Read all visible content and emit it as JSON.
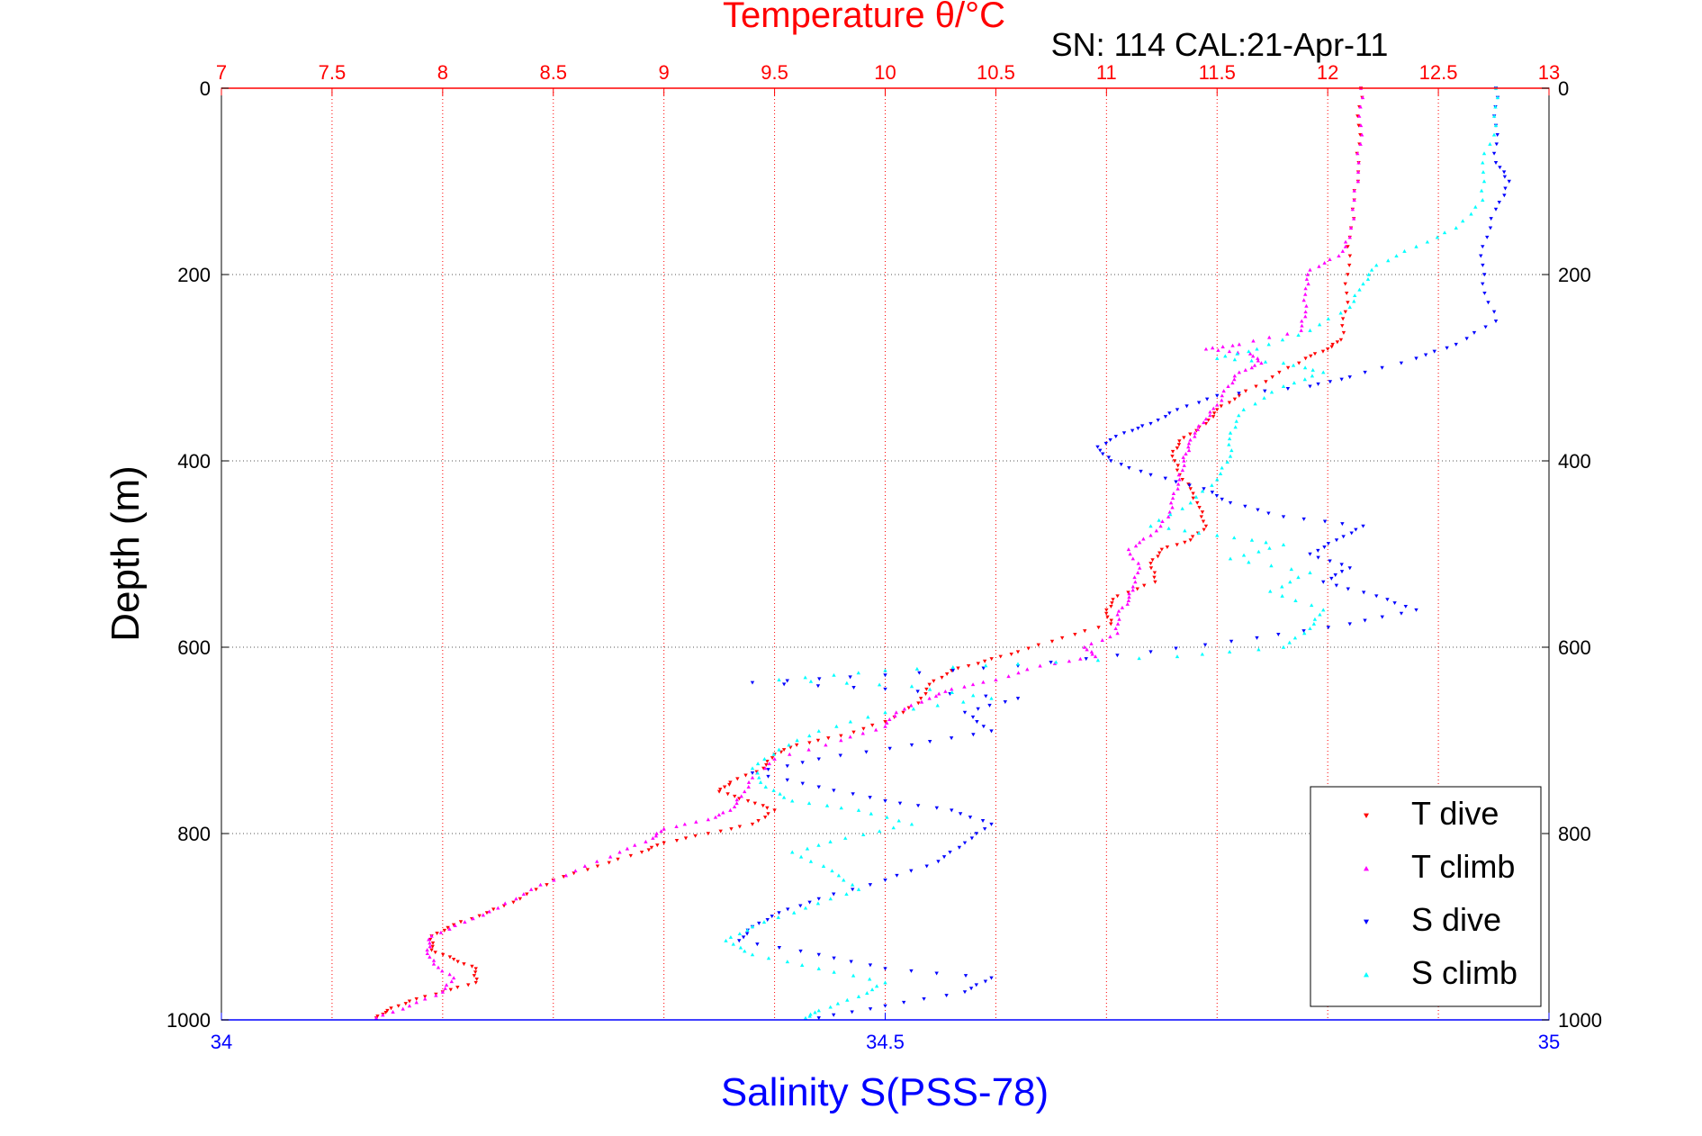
{
  "chart_data": {
    "type": "scatter",
    "title": "Temperature θ/°C",
    "subtitle": "SN: 114  CAL:21-Apr-11",
    "xlabel_top": "Temperature θ/°C",
    "xlabel_bottom": "Salinity S(PSS-78)",
    "ylabel": "Depth (m)",
    "ylim": [
      0,
      1000
    ],
    "y_reversed": true,
    "y_ticks": [
      0,
      200,
      400,
      600,
      800,
      1000
    ],
    "xlim_top": [
      7,
      13
    ],
    "x_ticks_top": [
      7,
      7.5,
      8,
      8.5,
      9,
      9.5,
      10,
      10.5,
      11,
      11.5,
      12,
      12.5,
      13
    ],
    "xlim_bottom": [
      34,
      35
    ],
    "x_ticks_bottom": [
      34,
      34.5,
      35
    ],
    "grid": true,
    "legend_placement": "bottom-right",
    "colors": {
      "temperature_axis": "#ff0000",
      "salinity_axis": "#0000ff",
      "t_dive": "#ff0000",
      "t_climb": "#ff00ff",
      "s_dive": "#0000ff",
      "s_climb": "#00ffff"
    },
    "series": [
      {
        "name": "T dive",
        "axis": "temperature",
        "marker": "triangle-down",
        "color": "#ff0000",
        "points": [
          [
            12.15,
            0
          ],
          [
            12.14,
            40
          ],
          [
            12.14,
            80
          ],
          [
            12.12,
            120
          ],
          [
            12.1,
            160
          ],
          [
            12.09,
            200
          ],
          [
            12.08,
            240
          ],
          [
            12.06,
            270
          ],
          [
            12.0,
            280
          ],
          [
            11.9,
            290
          ],
          [
            11.75,
            310
          ],
          [
            11.6,
            330
          ],
          [
            11.5,
            345
          ],
          [
            11.45,
            360
          ],
          [
            11.35,
            375
          ],
          [
            11.3,
            390
          ],
          [
            11.32,
            410
          ],
          [
            11.38,
            430
          ],
          [
            11.42,
            450
          ],
          [
            11.45,
            470
          ],
          [
            11.38,
            485
          ],
          [
            11.25,
            495
          ],
          [
            11.2,
            510
          ],
          [
            11.22,
            530
          ],
          [
            11.05,
            545
          ],
          [
            11.0,
            560
          ],
          [
            11.02,
            575
          ],
          [
            10.8,
            590
          ],
          [
            10.6,
            605
          ],
          [
            10.45,
            615
          ],
          [
            10.3,
            625
          ],
          [
            10.2,
            640
          ],
          [
            10.15,
            660
          ],
          [
            10.0,
            680
          ],
          [
            9.8,
            695
          ],
          [
            9.6,
            705
          ],
          [
            9.5,
            715
          ],
          [
            9.45,
            730
          ],
          [
            9.3,
            745
          ],
          [
            9.25,
            755
          ],
          [
            9.38,
            765
          ],
          [
            9.5,
            775
          ],
          [
            9.4,
            790
          ],
          [
            9.2,
            800
          ],
          [
            9.0,
            810
          ],
          [
            8.9,
            820
          ],
          [
            8.7,
            835
          ],
          [
            8.5,
            850
          ],
          [
            8.35,
            870
          ],
          [
            8.2,
            885
          ],
          [
            8.05,
            898
          ],
          [
            7.95,
            910
          ],
          [
            7.95,
            925
          ],
          [
            8.05,
            935
          ],
          [
            8.15,
            945
          ],
          [
            8.15,
            960
          ],
          [
            8.0,
            970
          ],
          [
            7.85,
            980
          ],
          [
            7.75,
            990
          ],
          [
            7.7,
            998
          ]
        ]
      },
      {
        "name": "T climb",
        "axis": "temperature",
        "marker": "triangle-up",
        "color": "#ff00ff",
        "points": [
          [
            12.15,
            0
          ],
          [
            12.15,
            40
          ],
          [
            12.14,
            80
          ],
          [
            12.12,
            120
          ],
          [
            12.1,
            160
          ],
          [
            12.05,
            180
          ],
          [
            11.92,
            195
          ],
          [
            11.9,
            215
          ],
          [
            11.9,
            240
          ],
          [
            11.88,
            260
          ],
          [
            11.6,
            275
          ],
          [
            11.45,
            280
          ],
          [
            11.65,
            285
          ],
          [
            11.7,
            295
          ],
          [
            11.6,
            305
          ],
          [
            11.55,
            320
          ],
          [
            11.5,
            340
          ],
          [
            11.45,
            355
          ],
          [
            11.4,
            370
          ],
          [
            11.37,
            385
          ],
          [
            11.35,
            400
          ],
          [
            11.33,
            420
          ],
          [
            11.3,
            440
          ],
          [
            11.28,
            460
          ],
          [
            11.2,
            480
          ],
          [
            11.1,
            495
          ],
          [
            11.15,
            515
          ],
          [
            11.12,
            535
          ],
          [
            11.1,
            550
          ],
          [
            11.05,
            565
          ],
          [
            11.05,
            585
          ],
          [
            10.9,
            600
          ],
          [
            10.95,
            610
          ],
          [
            10.7,
            620
          ],
          [
            10.5,
            635
          ],
          [
            10.3,
            645
          ],
          [
            10.2,
            655
          ],
          [
            10.05,
            670
          ],
          [
            10.0,
            685
          ],
          [
            9.8,
            700
          ],
          [
            9.5,
            720
          ],
          [
            9.4,
            740
          ],
          [
            9.35,
            760
          ],
          [
            9.3,
            775
          ],
          [
            9.2,
            785
          ],
          [
            9.0,
            795
          ],
          [
            8.95,
            805
          ],
          [
            8.8,
            820
          ],
          [
            8.6,
            840
          ],
          [
            8.4,
            860
          ],
          [
            8.25,
            880
          ],
          [
            8.1,
            895
          ],
          [
            7.95,
            910
          ],
          [
            7.93,
            925
          ],
          [
            7.96,
            940
          ],
          [
            8.05,
            955
          ],
          [
            8.0,
            970
          ],
          [
            7.85,
            985
          ],
          [
            7.7,
            998
          ]
        ]
      },
      {
        "name": "S dive",
        "axis": "salinity",
        "marker": "triangle-down",
        "color": "#0000ff",
        "points": [
          [
            34.96,
            0
          ],
          [
            34.96,
            40
          ],
          [
            34.96,
            80
          ],
          [
            34.97,
            100
          ],
          [
            34.96,
            130
          ],
          [
            34.95,
            170
          ],
          [
            34.95,
            210
          ],
          [
            34.96,
            250
          ],
          [
            34.93,
            275
          ],
          [
            34.9,
            290
          ],
          [
            34.85,
            310
          ],
          [
            34.82,
            320
          ],
          [
            34.75,
            330
          ],
          [
            34.72,
            345
          ],
          [
            34.7,
            360
          ],
          [
            34.68,
            370
          ],
          [
            34.66,
            385
          ],
          [
            34.67,
            400
          ],
          [
            34.7,
            415
          ],
          [
            34.74,
            430
          ],
          [
            34.76,
            445
          ],
          [
            34.8,
            460
          ],
          [
            34.86,
            470
          ],
          [
            34.84,
            485
          ],
          [
            34.82,
            500
          ],
          [
            34.85,
            515
          ],
          [
            34.83,
            530
          ],
          [
            34.87,
            545
          ],
          [
            34.9,
            560
          ],
          [
            34.85,
            575
          ],
          [
            34.78,
            590
          ],
          [
            34.7,
            605
          ],
          [
            34.6,
            620
          ],
          [
            34.5,
            630
          ],
          [
            34.4,
            638
          ],
          [
            34.5,
            645
          ],
          [
            34.6,
            655
          ],
          [
            34.56,
            670
          ],
          [
            34.58,
            690
          ],
          [
            34.52,
            705
          ],
          [
            34.45,
            720
          ],
          [
            34.4,
            735
          ],
          [
            34.45,
            750
          ],
          [
            34.5,
            765
          ],
          [
            34.55,
            775
          ],
          [
            34.58,
            790
          ],
          [
            34.56,
            810
          ],
          [
            34.54,
            830
          ],
          [
            34.5,
            850
          ],
          [
            34.45,
            870
          ],
          [
            34.42,
            885
          ],
          [
            34.4,
            900
          ],
          [
            34.39,
            915
          ],
          [
            34.45,
            930
          ],
          [
            34.5,
            945
          ],
          [
            34.58,
            955
          ],
          [
            34.56,
            970
          ],
          [
            34.5,
            985
          ],
          [
            34.45,
            998
          ]
        ]
      },
      {
        "name": "S climb",
        "axis": "salinity",
        "marker": "triangle-up",
        "color": "#00ffff",
        "points": [
          [
            34.96,
            0
          ],
          [
            34.96,
            40
          ],
          [
            34.95,
            80
          ],
          [
            34.95,
            120
          ],
          [
            34.93,
            150
          ],
          [
            34.9,
            170
          ],
          [
            34.87,
            190
          ],
          [
            34.86,
            210
          ],
          [
            34.85,
            235
          ],
          [
            34.82,
            260
          ],
          [
            34.78,
            280
          ],
          [
            34.75,
            290
          ],
          [
            34.8,
            295
          ],
          [
            34.83,
            305
          ],
          [
            34.8,
            320
          ],
          [
            34.77,
            345
          ],
          [
            34.76,
            370
          ],
          [
            34.76,
            395
          ],
          [
            34.75,
            420
          ],
          [
            34.73,
            445
          ],
          [
            34.7,
            470
          ],
          [
            34.75,
            480
          ],
          [
            34.8,
            490
          ],
          [
            34.76,
            505
          ],
          [
            34.82,
            520
          ],
          [
            34.79,
            540
          ],
          [
            34.83,
            560
          ],
          [
            34.82,
            580
          ],
          [
            34.8,
            600
          ],
          [
            34.72,
            610
          ],
          [
            34.6,
            618
          ],
          [
            34.5,
            625
          ],
          [
            34.42,
            635
          ],
          [
            34.52,
            642
          ],
          [
            34.58,
            655
          ],
          [
            34.5,
            670
          ],
          [
            34.45,
            690
          ],
          [
            34.42,
            710
          ],
          [
            34.4,
            730
          ],
          [
            34.41,
            750
          ],
          [
            34.43,
            765
          ],
          [
            34.48,
            775
          ],
          [
            34.52,
            790
          ],
          [
            34.47,
            805
          ],
          [
            34.43,
            820
          ],
          [
            34.46,
            840
          ],
          [
            34.48,
            860
          ],
          [
            34.44,
            880
          ],
          [
            34.4,
            900
          ],
          [
            34.38,
            915
          ],
          [
            34.4,
            930
          ],
          [
            34.45,
            945
          ],
          [
            34.5,
            960
          ],
          [
            34.48,
            975
          ],
          [
            34.45,
            990
          ],
          [
            34.44,
            998
          ]
        ]
      }
    ]
  }
}
